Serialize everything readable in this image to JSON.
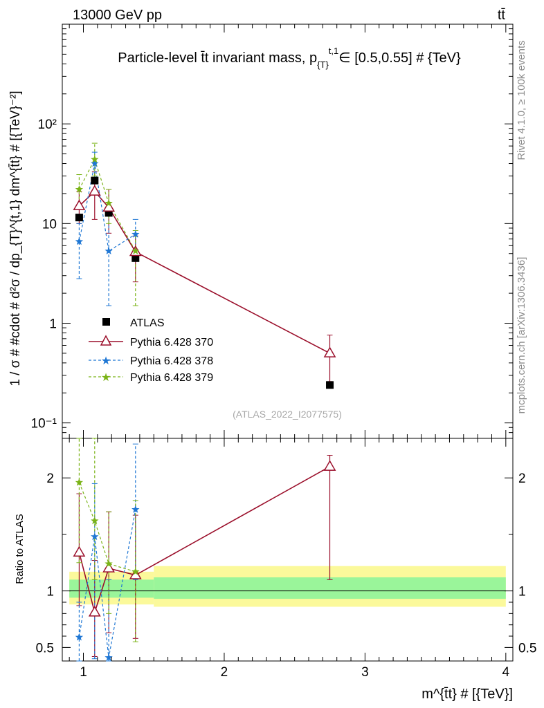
{
  "header": {
    "energy_label": "13000 GeV pp",
    "process_label": "tt̄"
  },
  "side_labels": {
    "rivet": "Rivet 4.1.0, ≥ 100k events",
    "mcplots": "mcplots.cern.ch [arXiv:1306.3436]"
  },
  "chart_data": [
    {
      "type": "line",
      "panel": "main",
      "title": "Particle-level t̄t invariant mass, p",
      "title_sub": "{T}",
      "title_sup": "t,1",
      "title_tail": "∈ [0.5,0.55] # {TeV}",
      "ylabel": "1 / σ # #cdot # d²σ / dp_{T}^{t,1} dm^{t̄t} # [{TeV}⁻²]",
      "yscale": "log",
      "ylim": [
        0.07,
        1000
      ],
      "xlim": [
        0.85,
        4.05
      ],
      "ytick_labels": [
        "10⁻¹",
        "1",
        "10",
        "10²"
      ],
      "yticks": [
        0.1,
        1,
        10,
        100
      ],
      "watermark": "(ATLAS_2022_I2077575)",
      "legend_position": "middle-left",
      "series": [
        {
          "name": "ATLAS",
          "style": "data",
          "color": "#000000",
          "x": [
            0.97,
            1.08,
            1.18,
            1.37,
            2.75
          ],
          "y": [
            11.5,
            27.0,
            12.8,
            4.5,
            0.24
          ],
          "yerr_lo": [
            11.5,
            27.0,
            12.8,
            4.5,
            0.24
          ],
          "yerr_hi": [
            11.5,
            27.0,
            12.8,
            4.5,
            0.24
          ]
        },
        {
          "name": "Pythia 6.428 370",
          "style": "solid-triangle",
          "color": "#9b0f2b",
          "x": [
            0.97,
            1.08,
            1.18,
            1.37,
            2.75
          ],
          "y": [
            15.0,
            21.0,
            14.5,
            5.2,
            0.5
          ],
          "yerr_lo": [
            10.0,
            11.0,
            8.0,
            2.6,
            0.26
          ],
          "yerr_hi": [
            21.0,
            33.0,
            22.0,
            7.5,
            0.76
          ]
        },
        {
          "name": "Pythia 6.428 378",
          "style": "dashed-star",
          "color": "#1f77d4",
          "x": [
            0.97,
            1.08,
            1.18,
            1.37
          ],
          "y": [
            6.6,
            40.0,
            5.3,
            7.8
          ],
          "yerr_lo": [
            2.8,
            28.0,
            1.5,
            5.0
          ],
          "yerr_hi": [
            10.0,
            52.0,
            14.0,
            11.0
          ]
        },
        {
          "name": "Pythia 6.428 379",
          "style": "dashed-star",
          "color": "#7ab317",
          "x": [
            0.97,
            1.08,
            1.18,
            1.37
          ],
          "y": [
            22.0,
            44.0,
            16.0,
            5.3
          ],
          "yerr_lo": [
            14.0,
            30.0,
            10.0,
            1.5
          ],
          "yerr_hi": [
            31.0,
            64.0,
            22.0,
            8.5
          ]
        }
      ]
    },
    {
      "type": "line",
      "panel": "ratio",
      "ylabel": "Ratio to ATLAS",
      "xlabel": "m^{t̄t} # [{TeV}]",
      "ylim": [
        0.38,
        2.35
      ],
      "xlim": [
        0.85,
        4.05
      ],
      "yticks": [
        0.5,
        1,
        2
      ],
      "ytick_labels": [
        "0.5",
        "1",
        "2"
      ],
      "xticks": [
        1,
        2,
        3,
        4
      ],
      "xtick_labels": [
        "1",
        "2",
        "3",
        "4"
      ],
      "bands": [
        {
          "x0": 0.9,
          "x1": 1.5,
          "yellow": [
            0.88,
            1.17
          ],
          "green": [
            0.94,
            1.1
          ]
        },
        {
          "x0": 1.5,
          "x1": 4.0,
          "yellow": [
            0.86,
            1.22
          ],
          "green": [
            0.93,
            1.12
          ]
        }
      ],
      "series": [
        {
          "name": "Pythia 6.428 370",
          "color": "#9b0f2b",
          "style": "solid-triangle",
          "x": [
            0.97,
            1.08,
            1.18,
            1.37,
            2.75
          ],
          "y": [
            1.34,
            0.81,
            1.2,
            1.14,
            2.1
          ],
          "yerr_lo": [
            0.87,
            0.42,
            0.63,
            0.58,
            1.1
          ],
          "yerr_hi": [
            1.86,
            1.27,
            1.7,
            1.67,
            2.2
          ]
        },
        {
          "name": "Pythia 6.428 378",
          "color": "#1f77d4",
          "style": "dashed-star",
          "x": [
            0.97,
            1.08,
            1.18,
            1.37
          ],
          "y": [
            0.59,
            1.48,
            0.41,
            1.72
          ],
          "yerr_lo": [
            0.25,
            0.4,
            0.3,
            1.1
          ],
          "yerr_hi": [
            0.9,
            1.95,
            1.1,
            2.3
          ]
        },
        {
          "name": "Pythia 6.428 379",
          "color": "#7ab317",
          "style": "dashed-star",
          "x": [
            0.97,
            1.08,
            1.18,
            1.37
          ],
          "y": [
            1.96,
            1.62,
            1.24,
            1.17
          ],
          "yerr_lo": [
            1.25,
            1.1,
            0.8,
            0.55
          ],
          "yerr_hi": [
            2.35,
            2.35,
            1.7,
            1.8
          ]
        }
      ]
    }
  ]
}
